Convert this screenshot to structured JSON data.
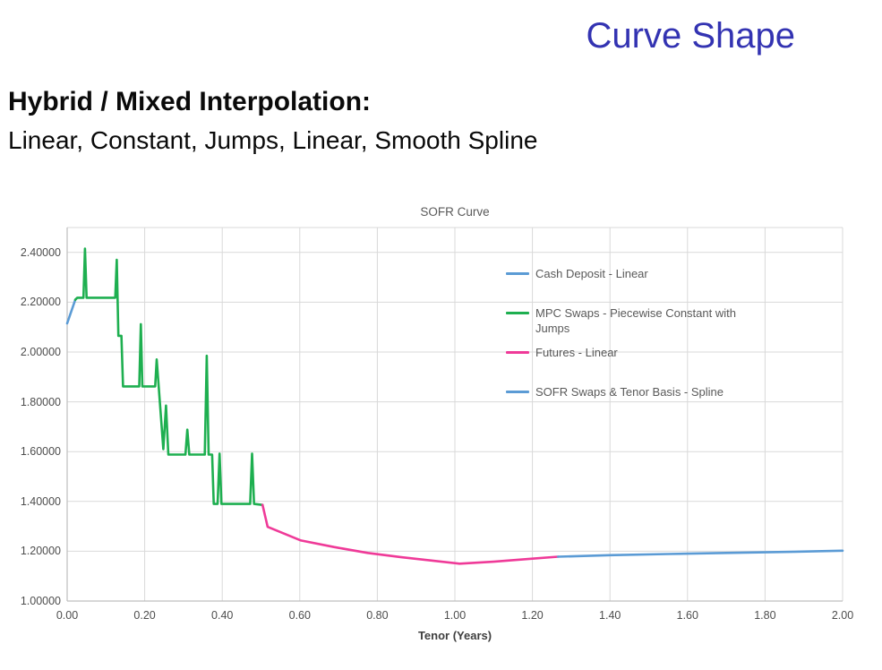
{
  "slide": {
    "title": "Curve Shape",
    "heading": "Hybrid / Mixed Interpolation:",
    "subheading": "Linear, Constant, Jumps, Linear, Smooth Spline"
  },
  "colors": {
    "slide_title": "#3333B2",
    "chart_text": "#595959",
    "gridline": "#D9D9D9",
    "axis_line": "#BFBFBF",
    "cash_deposit_blue": "#5B9BD5",
    "mpc_green": "#1EAF50",
    "futures_pink": "#EF3A98",
    "sofr_spline_blue": "#5B9BD5"
  },
  "chart_data": {
    "type": "line",
    "title": "SOFR Curve",
    "xlabel": "Tenor (Years)",
    "ylabel": "",
    "xlim": [
      0.0,
      2.0
    ],
    "ylim": [
      1.0,
      2.5
    ],
    "grid": true,
    "legend_position": "inside-upper-right",
    "x_ticks": [
      "0.00",
      "0.20",
      "0.40",
      "0.60",
      "0.80",
      "1.00",
      "1.20",
      "1.40",
      "1.60",
      "1.80",
      "2.00"
    ],
    "y_ticks": [
      "1.00000",
      "1.20000",
      "1.40000",
      "1.60000",
      "1.80000",
      "2.00000",
      "2.20000",
      "2.40000"
    ],
    "series": [
      {
        "name": "Cash Deposit - Linear",
        "color": "#5B9BD5",
        "points": [
          [
            0.0,
            2.115
          ],
          [
            0.021,
            2.21
          ]
        ]
      },
      {
        "name": "MPC Swaps - Piecewise Constant with Jumps",
        "color": "#1EAF50",
        "points": [
          [
            0.021,
            2.21
          ],
          [
            0.026,
            2.218
          ],
          [
            0.042,
            2.218
          ],
          [
            0.046,
            2.415
          ],
          [
            0.05,
            2.218
          ],
          [
            0.124,
            2.218
          ],
          [
            0.128,
            2.37
          ],
          [
            0.132,
            2.065
          ],
          [
            0.14,
            2.065
          ],
          [
            0.144,
            1.862
          ],
          [
            0.186,
            1.862
          ],
          [
            0.19,
            2.112
          ],
          [
            0.194,
            1.862
          ],
          [
            0.227,
            1.862
          ],
          [
            0.231,
            1.97
          ],
          [
            0.248,
            1.61
          ],
          [
            0.255,
            1.785
          ],
          [
            0.261,
            1.588
          ],
          [
            0.305,
            1.588
          ],
          [
            0.31,
            1.688
          ],
          [
            0.315,
            1.588
          ],
          [
            0.355,
            1.588
          ],
          [
            0.36,
            1.985
          ],
          [
            0.365,
            1.588
          ],
          [
            0.374,
            1.588
          ],
          [
            0.378,
            1.39
          ],
          [
            0.388,
            1.39
          ],
          [
            0.393,
            1.592
          ],
          [
            0.398,
            1.39
          ],
          [
            0.472,
            1.39
          ],
          [
            0.477,
            1.592
          ],
          [
            0.482,
            1.39
          ],
          [
            0.504,
            1.386
          ]
        ]
      },
      {
        "name": "Futures - Linear",
        "color": "#EF3A98",
        "points": [
          [
            0.504,
            1.386
          ],
          [
            0.517,
            1.298
          ],
          [
            0.603,
            1.243
          ],
          [
            0.688,
            1.217
          ],
          [
            0.775,
            1.193
          ],
          [
            0.862,
            1.176
          ],
          [
            1.012,
            1.15
          ],
          [
            1.1,
            1.158
          ],
          [
            1.2,
            1.17
          ],
          [
            1.266,
            1.178
          ]
        ]
      },
      {
        "name": "SOFR Swaps & Tenor Basis - Spline",
        "color": "#5B9BD5",
        "points": [
          [
            1.266,
            1.178
          ],
          [
            1.4,
            1.184
          ],
          [
            1.55,
            1.189
          ],
          [
            1.7,
            1.193
          ],
          [
            1.85,
            1.197
          ],
          [
            2.0,
            1.202
          ]
        ]
      }
    ]
  }
}
